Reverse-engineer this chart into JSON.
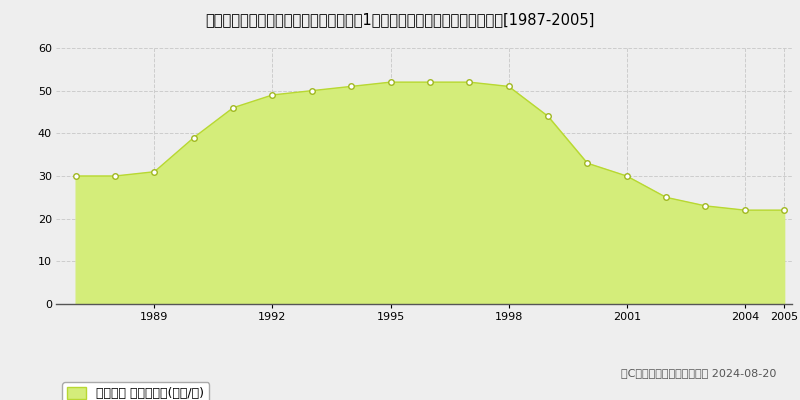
{
  "title": "長野県長野市青木島町青木島字五里原乙1４７番１外　地価公示　地価推移[1987-2005]",
  "years": [
    1987,
    1988,
    1989,
    1990,
    1991,
    1992,
    1993,
    1994,
    1995,
    1996,
    1997,
    1998,
    1999,
    2000,
    2001,
    2002,
    2003,
    2004,
    2005
  ],
  "values": [
    30,
    30,
    31,
    39,
    46,
    49,
    50,
    51,
    52,
    52,
    52,
    51,
    44,
    33,
    30,
    25,
    23,
    22,
    22
  ],
  "fill_color": "#d4ed7a",
  "line_color": "#b8d832",
  "marker_color": "#ffffff",
  "marker_edge_color": "#a0b820",
  "ylim": [
    0,
    60
  ],
  "yticks": [
    0,
    10,
    20,
    30,
    40,
    50,
    60
  ],
  "xticks": [
    1989,
    1992,
    1995,
    1998,
    2001,
    2004,
    2005
  ],
  "grid_color": "#cccccc",
  "background_color": "#eeeeee",
  "plot_bg_color": "#eeeeee",
  "legend_label": "地価公示 平均嵪単価(万円/嵪)",
  "copyright_text": "（C）土地価格ドットコム　 2024-08-20",
  "title_fontsize": 10.5,
  "legend_fontsize": 9,
  "copyright_fontsize": 8,
  "tick_fontsize": 8
}
